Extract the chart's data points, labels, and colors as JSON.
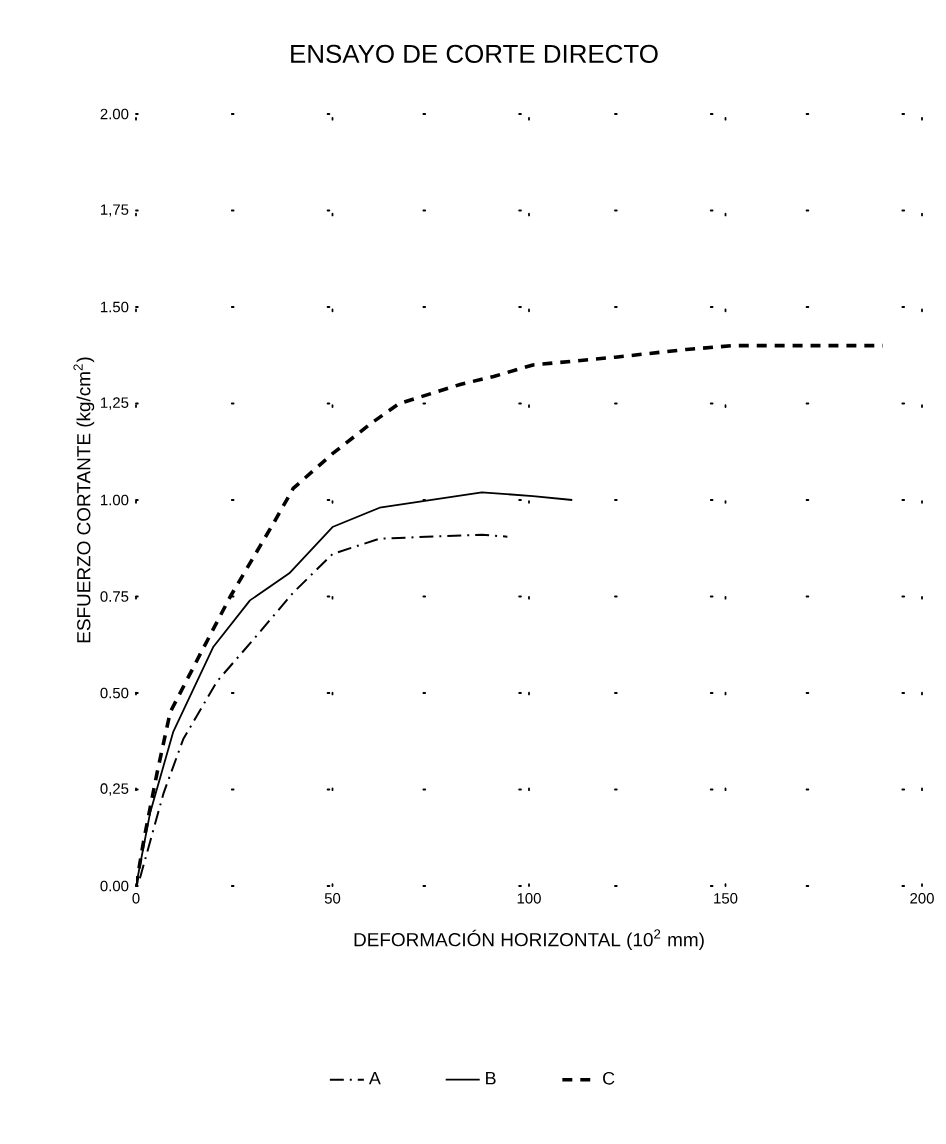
{
  "chart_data": {
    "type": "line",
    "title": "ENSAYO DE CORTE DIRECTO",
    "xlabel": "DEFORMACIÓN HORIZONTAL (10$^{2}$ mm)",
    "ylabel": "ESFUERZO CORTANTE (kg/cm$^{2}$)",
    "xlim": [
      0,
      200
    ],
    "xticks": [
      0,
      50,
      100,
      150,
      200
    ],
    "ylim": [
      0,
      2
    ],
    "yticks": [
      {
        "value": 0,
        "label": "0.00"
      },
      {
        "value": 0.25,
        "label": "0,25"
      },
      {
        "value": 0.5,
        "label": "0.50"
      },
      {
        "value": 0.75,
        "label": "0.75"
      },
      {
        "value": 1,
        "label": "1.00"
      },
      {
        "value": 1.25,
        "label": "1,25"
      },
      {
        "value": 1.5,
        "label": "1.50"
      },
      {
        "value": 1.75,
        "label": "1,75"
      },
      {
        "value": 2,
        "label": "2.00"
      }
    ],
    "grid": true,
    "legend": "bottom",
    "marker": "none",
    "series": [
      {
        "name": "A",
        "color": "#000000",
        "line_style": "dashdot",
        "x": [
          1,
          7,
          12,
          20.6,
          30,
          40,
          50,
          62,
          88,
          94.5
        ],
        "values": [
          0.02,
          0.24,
          0.38,
          0.53,
          0.64,
          0.76,
          0.86,
          0.9,
          0.91,
          0.905
        ]
      },
      {
        "name": "B",
        "color": "#000000",
        "line_style": "solid",
        "x": [
          0,
          3.6,
          9.5,
          19.7,
          29,
          39,
          50,
          62,
          88,
          101,
          111
        ],
        "values": [
          0,
          0.19,
          0.4,
          0.62,
          0.74,
          0.81,
          0.93,
          0.98,
          1.02,
          1.01,
          1.0
        ]
      },
      {
        "name": "C",
        "color": "#000000",
        "line_style": "dashed",
        "x": [
          0,
          2,
          5.3,
          8.7,
          16.3,
          24,
          35,
          40,
          50,
          60,
          67,
          82.7,
          91,
          101,
          122,
          140,
          152,
          190
        ],
        "values": [
          0,
          0.12,
          0.29,
          0.45,
          0.6,
          0.75,
          0.94,
          1.03,
          1.12,
          1.2,
          1.25,
          1.3,
          1.32,
          1.35,
          1.37,
          1.39,
          1.4,
          1.4
        ]
      }
    ]
  }
}
